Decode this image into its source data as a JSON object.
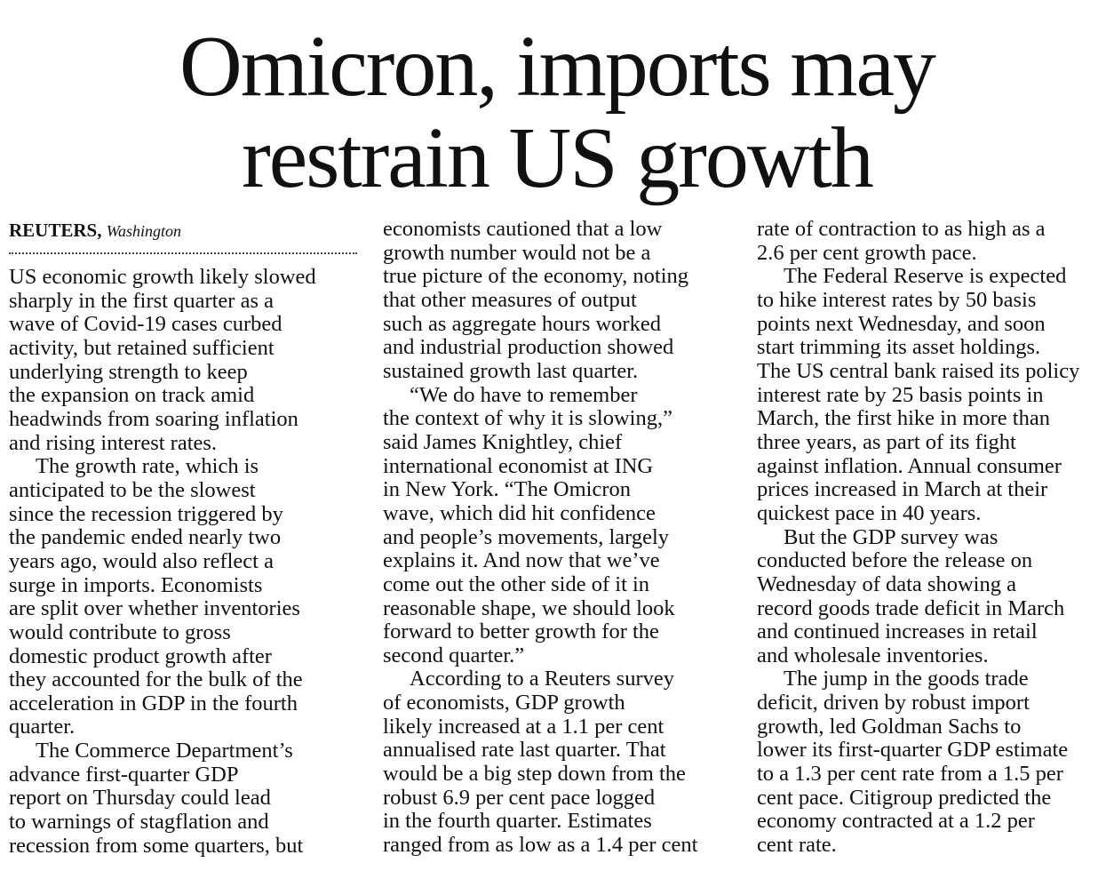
{
  "headline": {
    "lines": [
      "Omicron, imports may",
      "restrain US growth"
    ]
  },
  "byline": {
    "agency": "REUTERS,",
    "location": "Washington"
  },
  "columns": [
    {
      "paragraphs": [
        {
          "lines": [
            "US economic growth likely slowed",
            "sharply in the first quarter as a",
            "wave of Covid-19 cases curbed",
            "activity, but retained sufficient",
            "underlying strength to keep",
            "the expansion on track amid",
            "headwinds from soaring inflation",
            "and rising interest rates."
          ]
        },
        {
          "lines": [
            "The growth rate, which is",
            "anticipated to be the slowest",
            "since the recession triggered by",
            "the pandemic ended nearly two",
            "years ago, would also reflect a",
            "surge in imports.  Economists",
            "are split over whether inventories",
            "would contribute to gross",
            "domestic product growth after",
            "they accounted for the bulk of the",
            "acceleration in GDP in the fourth",
            "quarter."
          ]
        },
        {
          "lines": [
            "The Commerce Department’s",
            "advance first-quarter GDP",
            "report on Thursday could lead",
            "to warnings of stagflation and",
            "recession from some quarters, but"
          ]
        }
      ]
    },
    {
      "paragraphs": [
        {
          "lines": [
            "economists cautioned that a low",
            "growth number would not be a",
            "true picture of the economy, noting",
            "that other measures of output",
            "such as aggregate hours worked",
            "and industrial production showed",
            "sustained growth last quarter."
          ]
        },
        {
          "lines": [
            "“We do have to remember",
            "the context of why it is slowing,”",
            "said James Knightley, chief",
            "international economist at ING",
            "in New York.  “The Omicron",
            "wave, which did hit confidence",
            "and people’s movements, largely",
            "explains it. And now that we’ve",
            "come out the other side of it in",
            "reasonable shape, we should look",
            "forward to better growth for the",
            "second quarter.”"
          ]
        },
        {
          "lines": [
            "According to a Reuters survey",
            "of economists, GDP growth",
            "likely increased at a 1.1 per cent",
            "annualised rate last quarter. That",
            "would be a big step down from the",
            "robust 6.9 per cent pace logged",
            "in the fourth quarter. Estimates",
            "ranged from as low as a 1.4 per cent"
          ]
        }
      ]
    },
    {
      "paragraphs": [
        {
          "lines": [
            "rate of contraction to as high as a",
            "2.6 per cent growth pace."
          ]
        },
        {
          "lines": [
            "The Federal Reserve is expected",
            "to hike interest rates by 50 basis",
            "points next Wednesday, and soon",
            "start trimming its asset holdings.",
            "The US central bank raised its policy",
            "interest rate by 25 basis points in",
            "March, the first hike in more than",
            "three years, as part of its fight",
            "against inflation. Annual consumer",
            "prices increased in March at their",
            "quickest pace in 40 years."
          ]
        },
        {
          "lines": [
            "But the GDP survey was",
            "conducted before the release on",
            "Wednesday of data showing a",
            "record goods trade deficit in March",
            "and continued increases in retail",
            "and wholesale inventories."
          ]
        },
        {
          "lines": [
            "The jump in the goods trade",
            "deficit, driven by robust import",
            "growth, led Goldman Sachs to",
            "lower its first-quarter GDP estimate",
            "to a 1.3 per cent rate from a 1.5 per",
            "cent pace. Citigroup predicted the",
            "economy contracted at a 1.2 per",
            "cent rate."
          ]
        }
      ]
    }
  ]
}
